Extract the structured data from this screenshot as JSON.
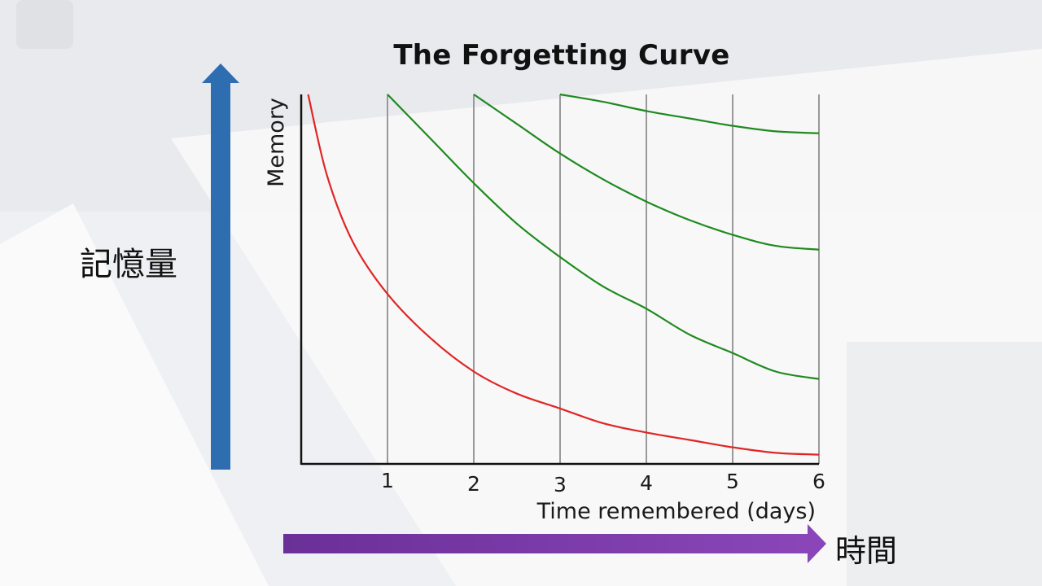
{
  "slide": {
    "y_arrow_label": "記憶量",
    "x_arrow_label": "時間",
    "colors": {
      "y_arrow": "#2e6eb0",
      "x_arrow": "#7a3aa8",
      "forgetting_curve": "#e02525",
      "review_curves": "#1f8a1f",
      "gridlines": "#999999"
    }
  },
  "chart_data": {
    "type": "line",
    "title": "The Forgetting Curve",
    "xlabel": "Time remembered (days)",
    "ylabel": "Memory",
    "x_ticks": [
      "1",
      "2",
      "3",
      "4",
      "5",
      "6"
    ],
    "x_tick_values": [
      1,
      2,
      3,
      4,
      5,
      6
    ],
    "xlim": [
      0,
      6
    ],
    "ylim": [
      0,
      1
    ],
    "y_ticks_visible": false,
    "grid": "vertical lines at each day",
    "legend": "none",
    "series": [
      {
        "color": "#e02525",
        "points": [
          [
            0.08,
            1.0
          ],
          [
            0.3,
            0.78
          ],
          [
            0.6,
            0.6
          ],
          [
            1.0,
            0.46
          ],
          [
            1.5,
            0.34
          ],
          [
            2.0,
            0.25
          ],
          [
            2.5,
            0.19
          ],
          [
            3.0,
            0.15
          ],
          [
            3.5,
            0.11
          ],
          [
            4.0,
            0.085
          ],
          [
            4.5,
            0.065
          ],
          [
            5.0,
            0.045
          ],
          [
            5.5,
            0.03
          ],
          [
            6.0,
            0.025
          ]
        ]
      },
      {
        "color": "#1f8a1f",
        "points": [
          [
            1.0,
            1.0
          ],
          [
            1.5,
            0.88
          ],
          [
            2.0,
            0.76
          ],
          [
            2.5,
            0.65
          ],
          [
            3.0,
            0.56
          ],
          [
            3.5,
            0.48
          ],
          [
            4.0,
            0.42
          ],
          [
            4.5,
            0.35
          ],
          [
            5.0,
            0.3
          ],
          [
            5.5,
            0.25
          ],
          [
            6.0,
            0.23
          ]
        ]
      },
      {
        "color": "#1f8a1f",
        "points": [
          [
            2.0,
            1.0
          ],
          [
            2.5,
            0.92
          ],
          [
            3.0,
            0.84
          ],
          [
            3.5,
            0.77
          ],
          [
            4.0,
            0.71
          ],
          [
            4.5,
            0.66
          ],
          [
            5.0,
            0.62
          ],
          [
            5.5,
            0.59
          ],
          [
            6.0,
            0.58
          ]
        ]
      },
      {
        "color": "#1f8a1f",
        "points": [
          [
            3.0,
            1.0
          ],
          [
            3.5,
            0.98
          ],
          [
            4.0,
            0.955
          ],
          [
            4.5,
            0.935
          ],
          [
            5.0,
            0.915
          ],
          [
            5.5,
            0.9
          ],
          [
            6.0,
            0.895
          ]
        ]
      }
    ]
  }
}
